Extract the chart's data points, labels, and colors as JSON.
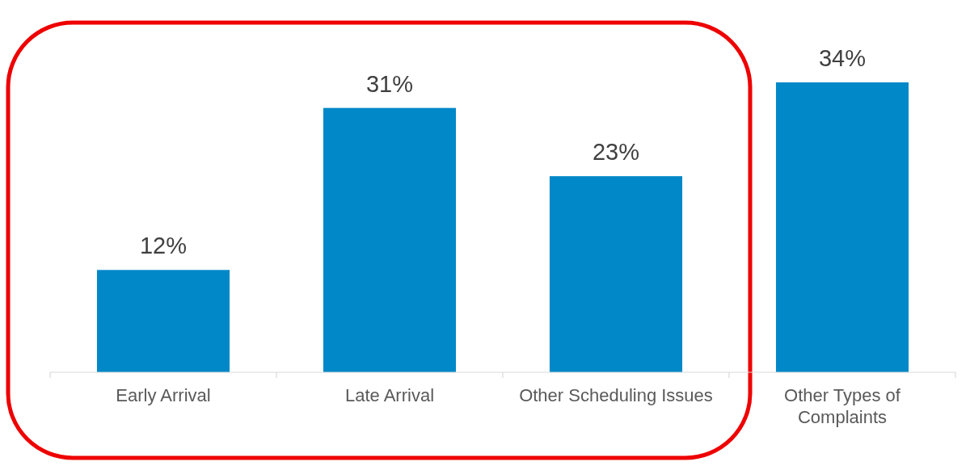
{
  "chart_data": {
    "type": "bar",
    "categories": [
      "Early Arrival",
      "Late Arrival",
      "Other Scheduling Issues",
      "Other Types of Complaints"
    ],
    "values": [
      12,
      31,
      23,
      34
    ],
    "value_labels": [
      "12%",
      "31%",
      "23%",
      "34%"
    ],
    "color": "#0088c8",
    "ylim": [
      0,
      34
    ],
    "tick_labels": "x"
  }
}
